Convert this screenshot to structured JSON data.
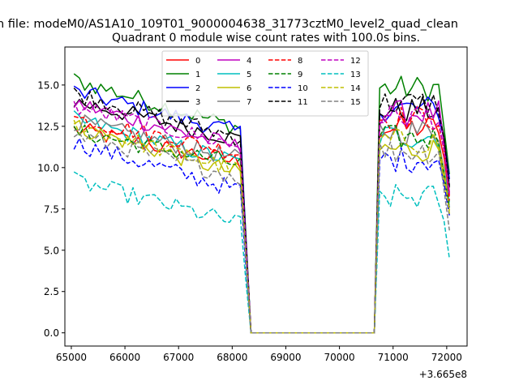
{
  "chart_data": {
    "type": "line",
    "suptitle": "n file: modeM0/AS1A10_109T01_9000004638_31773cztM0_level2_quad_clean",
    "title": "Quadrant 0 module wise count rates with 100.0s bins.",
    "xlabel": "",
    "ylabel": "",
    "x_offset_label": "+3.665e8",
    "x_offset": 366500000,
    "xlim": [
      64880,
      72380
    ],
    "ylim": [
      -0.8,
      17.3
    ],
    "x_ticks": [
      65000,
      66000,
      67000,
      68000,
      69000,
      70000,
      71000,
      72000
    ],
    "x_tick_labels": [
      "65000",
      "66000",
      "67000",
      "68000",
      "69000",
      "70000",
      "71000",
      "72000"
    ],
    "y_ticks": [
      0.0,
      2.5,
      5.0,
      7.5,
      10.0,
      12.5,
      15.0
    ],
    "y_tick_labels": [
      "0.0",
      "2.5",
      "5.0",
      "7.5",
      "10.0",
      "12.5",
      "15.0"
    ],
    "grid": false,
    "legend_position": "upper-center",
    "legend_columns": 4,
    "bin_seconds": 100,
    "segment_1": {
      "x_start": 65050,
      "x_end": 68150
    },
    "transition_1": [
      68250,
      68350
    ],
    "gap": {
      "x_start": 68350,
      "x_end": 70650,
      "value": 0
    },
    "transition_2": [
      70650,
      70750
    ],
    "segment_2": {
      "x_start": 70750,
      "x_end": 72050
    },
    "series": [
      {
        "name": "0",
        "color": "#ff0000",
        "dash": "solid",
        "mean1": 12.3,
        "end1": 10.3,
        "mean2": 12.4,
        "last": 8.3
      },
      {
        "name": "1",
        "color": "#008000",
        "dash": "solid",
        "mean1": 15.3,
        "end1": 12.4,
        "mean2": 14.8,
        "last": 9.6
      },
      {
        "name": "2",
        "color": "#0000ff",
        "dash": "solid",
        "mean1": 14.6,
        "end1": 12.1,
        "mean2": 13.6,
        "last": 9.3
      },
      {
        "name": "3",
        "color": "#000000",
        "dash": "solid",
        "mean1": 14.0,
        "end1": 11.7,
        "mean2": 13.5,
        "last": 8.8
      },
      {
        "name": "4",
        "color": "#bf00bf",
        "dash": "solid",
        "mean1": 13.9,
        "end1": 11.2,
        "mean2": 13.3,
        "last": 8.5
      },
      {
        "name": "5",
        "color": "#00bfbf",
        "dash": "solid",
        "mean1": 12.9,
        "end1": 10.3,
        "mean2": 11.9,
        "last": 7.9
      },
      {
        "name": "6",
        "color": "#bfbf00",
        "dash": "solid",
        "mean1": 12.5,
        "end1": 9.6,
        "mean2": 11.1,
        "last": 7.4
      },
      {
        "name": "7",
        "color": "#808080",
        "dash": "solid",
        "mean1": 12.8,
        "end1": 10.5,
        "mean2": 12.2,
        "last": 7.6
      },
      {
        "name": "8",
        "color": "#ff0000",
        "dash": "dashed",
        "mean1": 13.0,
        "end1": 10.9,
        "mean2": 13.0,
        "last": 8.0
      },
      {
        "name": "9",
        "color": "#008000",
        "dash": "dashed",
        "mean1": 12.2,
        "end1": 10.2,
        "mean2": 11.8,
        "last": 7.6
      },
      {
        "name": "10",
        "color": "#0000ff",
        "dash": "dashed",
        "mean1": 11.5,
        "end1": 8.6,
        "mean2": 10.5,
        "last": 7.1
      },
      {
        "name": "11",
        "color": "#000000",
        "dash": "dashed",
        "mean1": 14.5,
        "end1": 11.8,
        "mean2": 13.9,
        "last": 8.9
      },
      {
        "name": "12",
        "color": "#bf00bf",
        "dash": "dashed",
        "mean1": 13.7,
        "end1": 11.3,
        "mean2": 13.1,
        "last": 8.4
      },
      {
        "name": "13",
        "color": "#00bfbf",
        "dash": "dashed",
        "mean1": 9.2,
        "end1": 6.6,
        "mean2": 8.2,
        "last": 4.5
      },
      {
        "name": "14",
        "color": "#bfbf00",
        "dash": "dashed",
        "mean1": 12.6,
        "end1": 9.8,
        "mean2": 11.6,
        "last": 7.2
      },
      {
        "name": "15",
        "color": "#808080",
        "dash": "dashed",
        "mean1": 12.0,
        "end1": 9.4,
        "mean2": 11.0,
        "last": 6.2
      }
    ]
  }
}
